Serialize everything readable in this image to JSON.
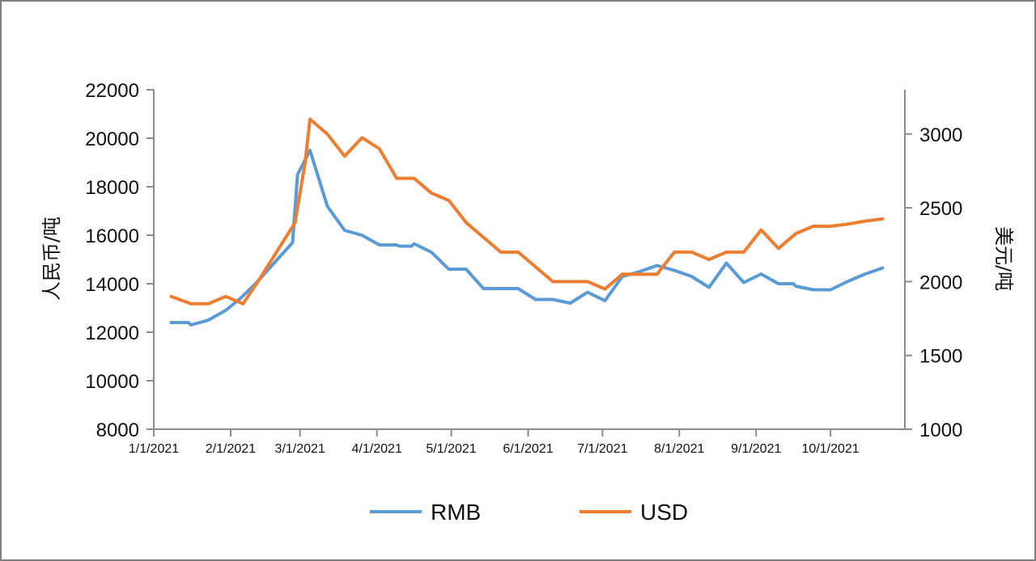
{
  "chart_data": {
    "type": "line",
    "title": "",
    "xlabel": "",
    "ylabel_left": "人民币/吨",
    "ylabel_right": "美元/吨",
    "x_tick_labels": [
      "1/1/2021",
      "2/1/2021",
      "3/1/2021",
      "4/1/2021",
      "5/1/2021",
      "6/1/2021",
      "7/1/2021",
      "8/1/2021",
      "9/1/2021",
      "10/1/2021"
    ],
    "x_range": [
      "2021-01-01",
      "2021-10-31"
    ],
    "ylim_left": [
      8000,
      22000
    ],
    "yticks_left": [
      8000,
      10000,
      12000,
      14000,
      16000,
      18000,
      20000,
      22000
    ],
    "ylim_right": [
      1000,
      3300
    ],
    "yticks_right": [
      1000,
      1500,
      2000,
      2500,
      3000
    ],
    "legend_position": "bottom",
    "grid": false,
    "series": [
      {
        "name": "RMB",
        "axis": "left",
        "color": "#5B9BD5",
        "points": [
          [
            "2021-01-08",
            12400
          ],
          [
            "2021-01-15",
            12400
          ],
          [
            "2021-01-16",
            12300
          ],
          [
            "2021-01-23",
            12500
          ],
          [
            "2021-01-30",
            12900
          ],
          [
            "2021-02-05",
            13400
          ],
          [
            "2021-02-11",
            14000
          ],
          [
            "2021-02-26",
            15700
          ],
          [
            "2021-02-28",
            18500
          ],
          [
            "2021-03-05",
            19500
          ],
          [
            "2021-03-12",
            17200
          ],
          [
            "2021-03-19",
            16200
          ],
          [
            "2021-03-26",
            16000
          ],
          [
            "2021-04-02",
            15600
          ],
          [
            "2021-04-09",
            15600
          ],
          [
            "2021-04-10",
            15550
          ],
          [
            "2021-04-15",
            15550
          ],
          [
            "2021-04-16",
            15650
          ],
          [
            "2021-04-23",
            15300
          ],
          [
            "2021-04-30",
            14600
          ],
          [
            "2021-05-07",
            14600
          ],
          [
            "2021-05-14",
            13800
          ],
          [
            "2021-05-21",
            13800
          ],
          [
            "2021-05-28",
            13800
          ],
          [
            "2021-06-04",
            13350
          ],
          [
            "2021-06-11",
            13350
          ],
          [
            "2021-06-18",
            13200
          ],
          [
            "2021-06-25",
            13650
          ],
          [
            "2021-07-02",
            13300
          ],
          [
            "2021-07-09",
            14300
          ],
          [
            "2021-07-16",
            14500
          ],
          [
            "2021-07-23",
            14750
          ],
          [
            "2021-07-30",
            14550
          ],
          [
            "2021-08-06",
            14300
          ],
          [
            "2021-08-13",
            13850
          ],
          [
            "2021-08-20",
            14850
          ],
          [
            "2021-08-27",
            14050
          ],
          [
            "2021-09-03",
            14400
          ],
          [
            "2021-09-10",
            14000
          ],
          [
            "2021-09-16",
            14000
          ],
          [
            "2021-09-17",
            13900
          ],
          [
            "2021-09-24",
            13750
          ],
          [
            "2021-10-01",
            13750
          ],
          [
            "2021-10-08",
            14100
          ],
          [
            "2021-10-15",
            14400
          ],
          [
            "2021-10-22",
            14650
          ]
        ]
      },
      {
        "name": "USD",
        "axis": "right",
        "color": "#ED7D31",
        "points": [
          [
            "2021-01-08",
            1900
          ],
          [
            "2021-01-16",
            1850
          ],
          [
            "2021-01-23",
            1850
          ],
          [
            "2021-01-30",
            1900
          ],
          [
            "2021-02-06",
            1850
          ],
          [
            "2021-02-12",
            2000
          ],
          [
            "2021-02-27",
            2400
          ],
          [
            "2021-03-03",
            2800
          ],
          [
            "2021-03-05",
            3100
          ],
          [
            "2021-03-12",
            3000
          ],
          [
            "2021-03-19",
            2850
          ],
          [
            "2021-03-26",
            2975
          ],
          [
            "2021-04-02",
            2900
          ],
          [
            "2021-04-09",
            2700
          ],
          [
            "2021-04-16",
            2700
          ],
          [
            "2021-04-23",
            2600
          ],
          [
            "2021-04-30",
            2550
          ],
          [
            "2021-05-07",
            2400
          ],
          [
            "2021-05-14",
            2300
          ],
          [
            "2021-05-21",
            2200
          ],
          [
            "2021-05-28",
            2200
          ],
          [
            "2021-06-04",
            2100
          ],
          [
            "2021-06-11",
            2000
          ],
          [
            "2021-06-18",
            2000
          ],
          [
            "2021-06-25",
            2000
          ],
          [
            "2021-07-02",
            1950
          ],
          [
            "2021-07-09",
            2050
          ],
          [
            "2021-07-16",
            2050
          ],
          [
            "2021-07-23",
            2050
          ],
          [
            "2021-07-30",
            2200
          ],
          [
            "2021-08-06",
            2200
          ],
          [
            "2021-08-13",
            2150
          ],
          [
            "2021-08-20",
            2200
          ],
          [
            "2021-08-27",
            2200
          ],
          [
            "2021-09-03",
            2350
          ],
          [
            "2021-09-10",
            2225
          ],
          [
            "2021-09-17",
            2325
          ],
          [
            "2021-09-24",
            2375
          ],
          [
            "2021-10-01",
            2375
          ],
          [
            "2021-10-08",
            2390
          ],
          [
            "2021-10-15",
            2410
          ],
          [
            "2021-10-22",
            2425
          ]
        ]
      }
    ]
  }
}
